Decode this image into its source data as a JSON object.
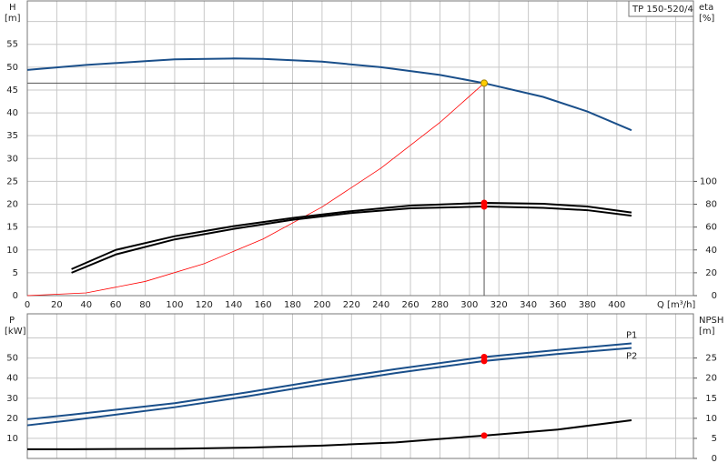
{
  "chart_data": [
    {
      "type": "line",
      "annotation": "TP 150-520/4",
      "x_label": "Q [m³/h]",
      "y_label": "H",
      "y_unit": "[m]",
      "y2_label": "eta",
      "y2_unit": "[%]",
      "xlim": [
        0,
        452
      ],
      "ylim": [
        0,
        64.5
      ],
      "y2lim": [
        0,
        258
      ],
      "grid": true,
      "xticks": [
        0,
        20,
        40,
        60,
        80,
        100,
        120,
        140,
        160,
        180,
        200,
        220,
        240,
        260,
        280,
        300,
        320,
        340,
        360,
        380,
        400,
        {
          "value": 420,
          "label": null
        },
        {
          "value": 440,
          "label": null
        }
      ],
      "yticks": [
        0,
        5,
        10,
        15,
        20,
        25,
        30,
        35,
        40,
        45,
        50,
        55,
        {
          "value": 60,
          "label": null
        }
      ],
      "y2ticks": [
        0,
        20,
        40,
        60,
        80,
        100
      ],
      "marker_color": "#ff0000",
      "duty_point": {
        "x": 310,
        "y": 46.5,
        "color": "#ffcc00"
      },
      "series": [
        {
          "color": "#1a4f8a",
          "x": [
            0,
            40,
            80,
            100,
            140,
            160,
            200,
            240,
            280,
            310,
            350,
            380,
            410
          ],
          "values": [
            49.4,
            50.5,
            51.3,
            51.7,
            51.9,
            51.8,
            51.2,
            50,
            48.3,
            46.5,
            43.5,
            40.3,
            36.2
          ]
        },
        {
          "color": "#ff0000",
          "x": [
            0,
            40,
            80,
            120,
            160,
            200,
            240,
            280,
            310
          ],
          "values": [
            0,
            0.6,
            3.1,
            7,
            12.4,
            19.4,
            27.9,
            37.9,
            46.5
          ]
        },
        {
          "color": "#000000",
          "axis": "y2",
          "x": [
            30,
            60,
            100,
            140,
            180,
            220,
            260,
            310,
            350,
            380,
            410
          ],
          "values": [
            23.2,
            40,
            52,
            60.8,
            68,
            74,
            78.8,
            81.2,
            80.4,
            78,
            72.8
          ]
        },
        {
          "color": "#000000",
          "axis": "y2",
          "x": [
            30,
            60,
            100,
            140,
            180,
            220,
            260,
            310,
            350,
            380,
            410
          ],
          "values": [
            20,
            36,
            49.2,
            58.4,
            66.4,
            72.4,
            76.4,
            78,
            76.8,
            74.8,
            70
          ]
        }
      ]
    },
    {
      "type": "line",
      "y_label": "P",
      "y_unit": "[kW]",
      "y2_label": "NPSH",
      "y2_unit": "[m]",
      "xlim": [
        0,
        452
      ],
      "ylim": [
        0,
        72
      ],
      "y2lim": [
        0,
        36
      ],
      "grid": true,
      "yticks": [
        10,
        20,
        30,
        40,
        50,
        {
          "value": 60,
          "label": null
        }
      ],
      "y2ticks": [
        0,
        5,
        10,
        15,
        20,
        25
      ],
      "marker_color": "#ff0000",
      "series": [
        {
          "name": "P1",
          "color": "#1a4f8a",
          "x": [
            0,
            30,
            100,
            150,
            200,
            250,
            310,
            360,
            410
          ],
          "values": [
            19.5,
            21.8,
            27.5,
            33,
            39,
            44.5,
            50.5,
            54,
            57.3
          ]
        },
        {
          "name": "P2",
          "color": "#1a4f8a",
          "x": [
            0,
            30,
            100,
            150,
            200,
            250,
            310,
            360,
            410
          ],
          "values": [
            16.5,
            19,
            25.5,
            31,
            37,
            42.5,
            48.5,
            52,
            55
          ]
        },
        {
          "color": "#000000",
          "axis": "y2",
          "x": [
            0,
            30,
            100,
            150,
            200,
            250,
            310,
            360,
            410
          ],
          "values": [
            2.3,
            2.3,
            2.4,
            2.7,
            3.2,
            4,
            5.7,
            7.2,
            9.5
          ]
        }
      ]
    }
  ]
}
